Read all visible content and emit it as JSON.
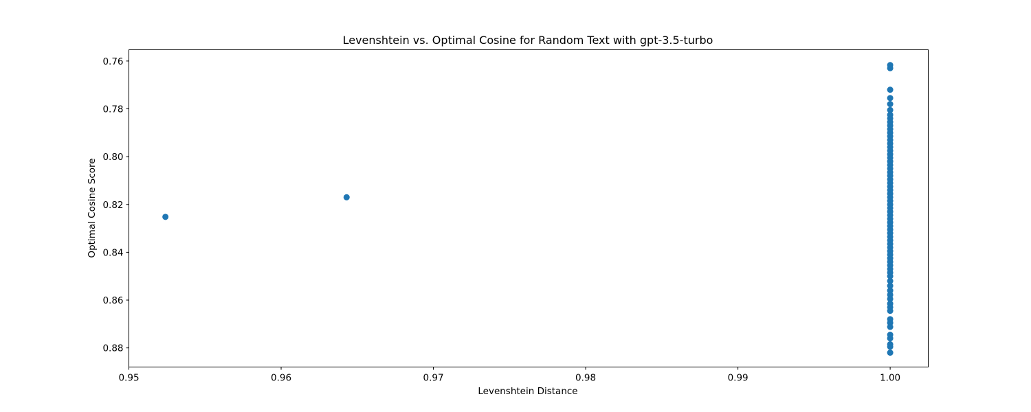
{
  "chart_data": {
    "type": "scatter",
    "title": "Levenshtein vs. Optimal Cosine for Random Text with gpt-3.5-turbo",
    "xlabel": "Levenshtein Distance",
    "ylabel": "Optimal Cosine Score",
    "xlim": [
      0.95,
      1.0025
    ],
    "ylim": [
      0.888,
      0.7553
    ],
    "y_inverted": true,
    "x_ticks": [
      "0.95",
      "0.96",
      "0.97",
      "0.98",
      "0.99",
      "1.00"
    ],
    "y_ticks": [
      "0.76",
      "0.78",
      "0.80",
      "0.82",
      "0.84",
      "0.86",
      "0.88"
    ],
    "grid": false,
    "marker_color": "#1f77b4",
    "points": [
      {
        "x": 0.9524,
        "y": 0.8252
      },
      {
        "x": 0.9643,
        "y": 0.817
      },
      {
        "x": 1.0,
        "y": 0.7617
      },
      {
        "x": 1.0,
        "y": 0.763
      },
      {
        "x": 1.0,
        "y": 0.772
      },
      {
        "x": 1.0,
        "y": 0.7755
      },
      {
        "x": 1.0,
        "y": 0.778
      },
      {
        "x": 1.0,
        "y": 0.7805
      },
      {
        "x": 1.0,
        "y": 0.7825
      },
      {
        "x": 1.0,
        "y": 0.784
      },
      {
        "x": 1.0,
        "y": 0.7855
      },
      {
        "x": 1.0,
        "y": 0.787
      },
      {
        "x": 1.0,
        "y": 0.7885
      },
      {
        "x": 1.0,
        "y": 0.79
      },
      {
        "x": 1.0,
        "y": 0.7915
      },
      {
        "x": 1.0,
        "y": 0.793
      },
      {
        "x": 1.0,
        "y": 0.7945
      },
      {
        "x": 1.0,
        "y": 0.796
      },
      {
        "x": 1.0,
        "y": 0.7975
      },
      {
        "x": 1.0,
        "y": 0.799
      },
      {
        "x": 1.0,
        "y": 0.8005
      },
      {
        "x": 1.0,
        "y": 0.802
      },
      {
        "x": 1.0,
        "y": 0.8035
      },
      {
        "x": 1.0,
        "y": 0.805
      },
      {
        "x": 1.0,
        "y": 0.8065
      },
      {
        "x": 1.0,
        "y": 0.808
      },
      {
        "x": 1.0,
        "y": 0.8095
      },
      {
        "x": 1.0,
        "y": 0.811
      },
      {
        "x": 1.0,
        "y": 0.8125
      },
      {
        "x": 1.0,
        "y": 0.814
      },
      {
        "x": 1.0,
        "y": 0.8155
      },
      {
        "x": 1.0,
        "y": 0.817
      },
      {
        "x": 1.0,
        "y": 0.8185
      },
      {
        "x": 1.0,
        "y": 0.82
      },
      {
        "x": 1.0,
        "y": 0.8215
      },
      {
        "x": 1.0,
        "y": 0.823
      },
      {
        "x": 1.0,
        "y": 0.8245
      },
      {
        "x": 1.0,
        "y": 0.826
      },
      {
        "x": 1.0,
        "y": 0.8275
      },
      {
        "x": 1.0,
        "y": 0.829
      },
      {
        "x": 1.0,
        "y": 0.8305
      },
      {
        "x": 1.0,
        "y": 0.832
      },
      {
        "x": 1.0,
        "y": 0.8335
      },
      {
        "x": 1.0,
        "y": 0.835
      },
      {
        "x": 1.0,
        "y": 0.8365
      },
      {
        "x": 1.0,
        "y": 0.838
      },
      {
        "x": 1.0,
        "y": 0.8395
      },
      {
        "x": 1.0,
        "y": 0.841
      },
      {
        "x": 1.0,
        "y": 0.8425
      },
      {
        "x": 1.0,
        "y": 0.844
      },
      {
        "x": 1.0,
        "y": 0.8455
      },
      {
        "x": 1.0,
        "y": 0.847
      },
      {
        "x": 1.0,
        "y": 0.8485
      },
      {
        "x": 1.0,
        "y": 0.85
      },
      {
        "x": 1.0,
        "y": 0.852
      },
      {
        "x": 1.0,
        "y": 0.854
      },
      {
        "x": 1.0,
        "y": 0.856
      },
      {
        "x": 1.0,
        "y": 0.8578
      },
      {
        "x": 1.0,
        "y": 0.8595
      },
      {
        "x": 1.0,
        "y": 0.8615
      },
      {
        "x": 1.0,
        "y": 0.863
      },
      {
        "x": 1.0,
        "y": 0.8645
      },
      {
        "x": 1.0,
        "y": 0.868
      },
      {
        "x": 1.0,
        "y": 0.8695
      },
      {
        "x": 1.0,
        "y": 0.8712
      },
      {
        "x": 1.0,
        "y": 0.8745
      },
      {
        "x": 1.0,
        "y": 0.876
      },
      {
        "x": 1.0,
        "y": 0.8785
      },
      {
        "x": 1.0,
        "y": 0.8795
      },
      {
        "x": 1.0,
        "y": 0.882
      }
    ]
  }
}
